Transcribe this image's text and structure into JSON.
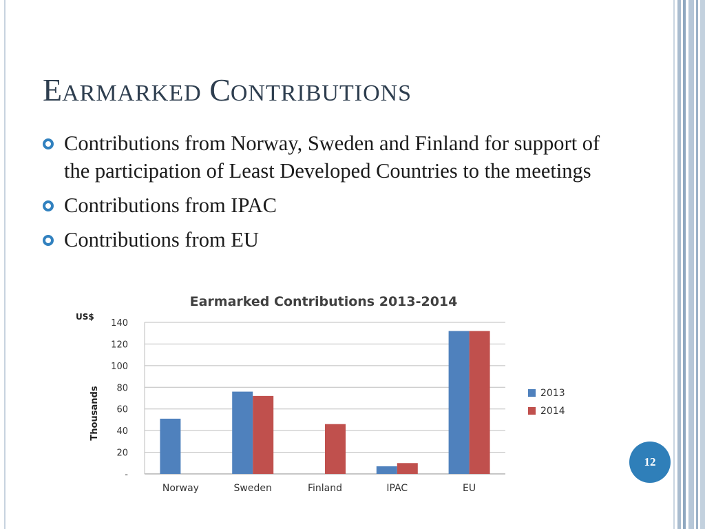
{
  "slide": {
    "title_cap1": "E",
    "title_rest1": "armarked",
    "title_cap2": "C",
    "title_rest2": "ontributions",
    "page_number": "12",
    "accent_color": "#2f7fb9"
  },
  "bullets": [
    {
      "text": "Contributions from Norway, Sweden and Finland for support of the participation of Least Developed Countries to the meetings"
    },
    {
      "text": "Contributions from IPAC"
    },
    {
      "text": "Contributions from EU"
    }
  ],
  "chart_data": {
    "type": "bar",
    "title": "Earmarked Contributions 2013-2014",
    "unit_label": "US$",
    "ylabel": "Thousands",
    "xlabel": "",
    "categories": [
      "Norway",
      "Sweden",
      "Finland",
      "IPAC",
      "EU"
    ],
    "series": [
      {
        "name": "2013",
        "color": "#4f81bd",
        "values": [
          51,
          76,
          0,
          7,
          132
        ]
      },
      {
        "name": "2014",
        "color": "#c0504d",
        "values": [
          0,
          72,
          46,
          10,
          132
        ]
      }
    ],
    "ylim": [
      0,
      140
    ],
    "yticks": [
      0,
      20,
      40,
      60,
      80,
      100,
      120,
      140
    ],
    "ytick_labels": [
      "-",
      "20",
      "40",
      "60",
      "80",
      "100",
      "120",
      "140"
    ],
    "grid": true,
    "legend": "right"
  }
}
